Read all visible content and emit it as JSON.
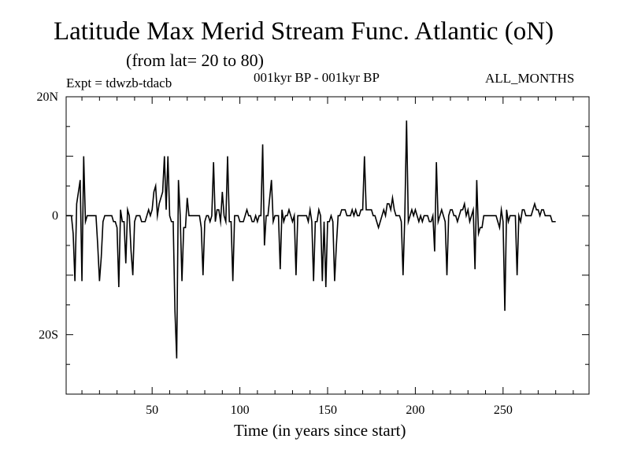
{
  "chart_data": {
    "type": "line",
    "title": "Latitude Max Merid Stream Func. Atlantic (oN)",
    "subtitle": "(from lat= 20 to 80)",
    "annotations": {
      "left": "Expt = tdwzb-tdacb",
      "center": "001kyr BP - 001kyr BP",
      "right": "ALL_MONTHS"
    },
    "xlabel": "Time (in years since start)",
    "ylabel": "",
    "xlim": [
      1,
      299
    ],
    "ylim": [
      -30,
      20
    ],
    "x_ticks": [
      50,
      100,
      150,
      200,
      250
    ],
    "x_tick_labels": [
      "50",
      "100",
      "150",
      "200",
      "250"
    ],
    "y_ticks": [
      20,
      0,
      -20
    ],
    "y_tick_labels": [
      "20N",
      "0",
      "20S"
    ],
    "series": [
      {
        "name": "Latitude Max Merid Stream Func",
        "x_start": 1,
        "x_step": 1,
        "values": [
          0,
          0,
          0,
          0,
          -3,
          -11,
          2,
          4,
          6,
          -11,
          10,
          -1,
          0,
          0,
          0,
          0,
          0,
          0,
          -5,
          -11,
          -7,
          -1,
          0,
          0,
          0,
          0,
          0,
          -1,
          -1,
          -2,
          -12,
          1,
          -1,
          -1,
          -8,
          1,
          0,
          -6,
          -10,
          -1,
          0,
          0,
          0,
          -1,
          -1,
          -1,
          0,
          1,
          0,
          1,
          4,
          5,
          0,
          2,
          3,
          4,
          10,
          1,
          10,
          0,
          -1,
          -1,
          -16,
          -24,
          6,
          0,
          -11,
          -2,
          -2,
          3,
          0,
          0,
          0,
          0,
          0,
          0,
          0,
          -2,
          -10,
          -1,
          0,
          0,
          -1,
          0,
          9,
          -1,
          1,
          1,
          -1,
          4,
          0,
          -1,
          10,
          -1,
          -1,
          -11,
          0,
          0,
          0,
          -1,
          -1,
          -1,
          0,
          1,
          0,
          0,
          -1,
          -1,
          0,
          -1,
          0,
          0,
          12,
          -5,
          0,
          0,
          3,
          6,
          -1,
          0,
          0,
          0,
          -9,
          1,
          -1,
          0,
          0,
          1,
          0,
          -1,
          0,
          -10,
          0,
          0,
          0,
          0,
          0,
          0,
          -1,
          1,
          -1,
          -11,
          -1,
          -1,
          1,
          0,
          -11,
          -1,
          -12,
          -1,
          -1,
          0,
          -1,
          -11,
          -5,
          0,
          0,
          1,
          1,
          1,
          0,
          0,
          0,
          1,
          0,
          1,
          0,
          0,
          1,
          1,
          10,
          1,
          1,
          1,
          1,
          0,
          0,
          -1,
          -2,
          -1,
          0,
          1,
          0,
          2,
          2,
          1,
          3,
          1,
          0,
          0,
          0,
          -1,
          -10,
          0,
          16,
          -1,
          0,
          1,
          0,
          1,
          0,
          -1,
          0,
          -1,
          0,
          0,
          0,
          -1,
          -1,
          0,
          -6,
          9,
          -1,
          0,
          1,
          0,
          -1,
          -10,
          0,
          1,
          1,
          0,
          0,
          -1,
          0,
          1,
          1,
          2,
          0,
          1,
          -1,
          0,
          1,
          -9,
          6,
          -3,
          -2,
          -2,
          0,
          0,
          0,
          0,
          0,
          0,
          0,
          0,
          -1,
          -2,
          1,
          -1,
          -16,
          1,
          -1,
          0,
          0,
          0,
          0,
          -10,
          0,
          -1,
          1,
          1,
          0,
          0,
          0,
          0,
          1,
          2,
          1,
          1,
          0,
          1,
          1,
          0,
          0,
          0,
          0,
          -1,
          -1,
          -1
        ]
      }
    ]
  }
}
